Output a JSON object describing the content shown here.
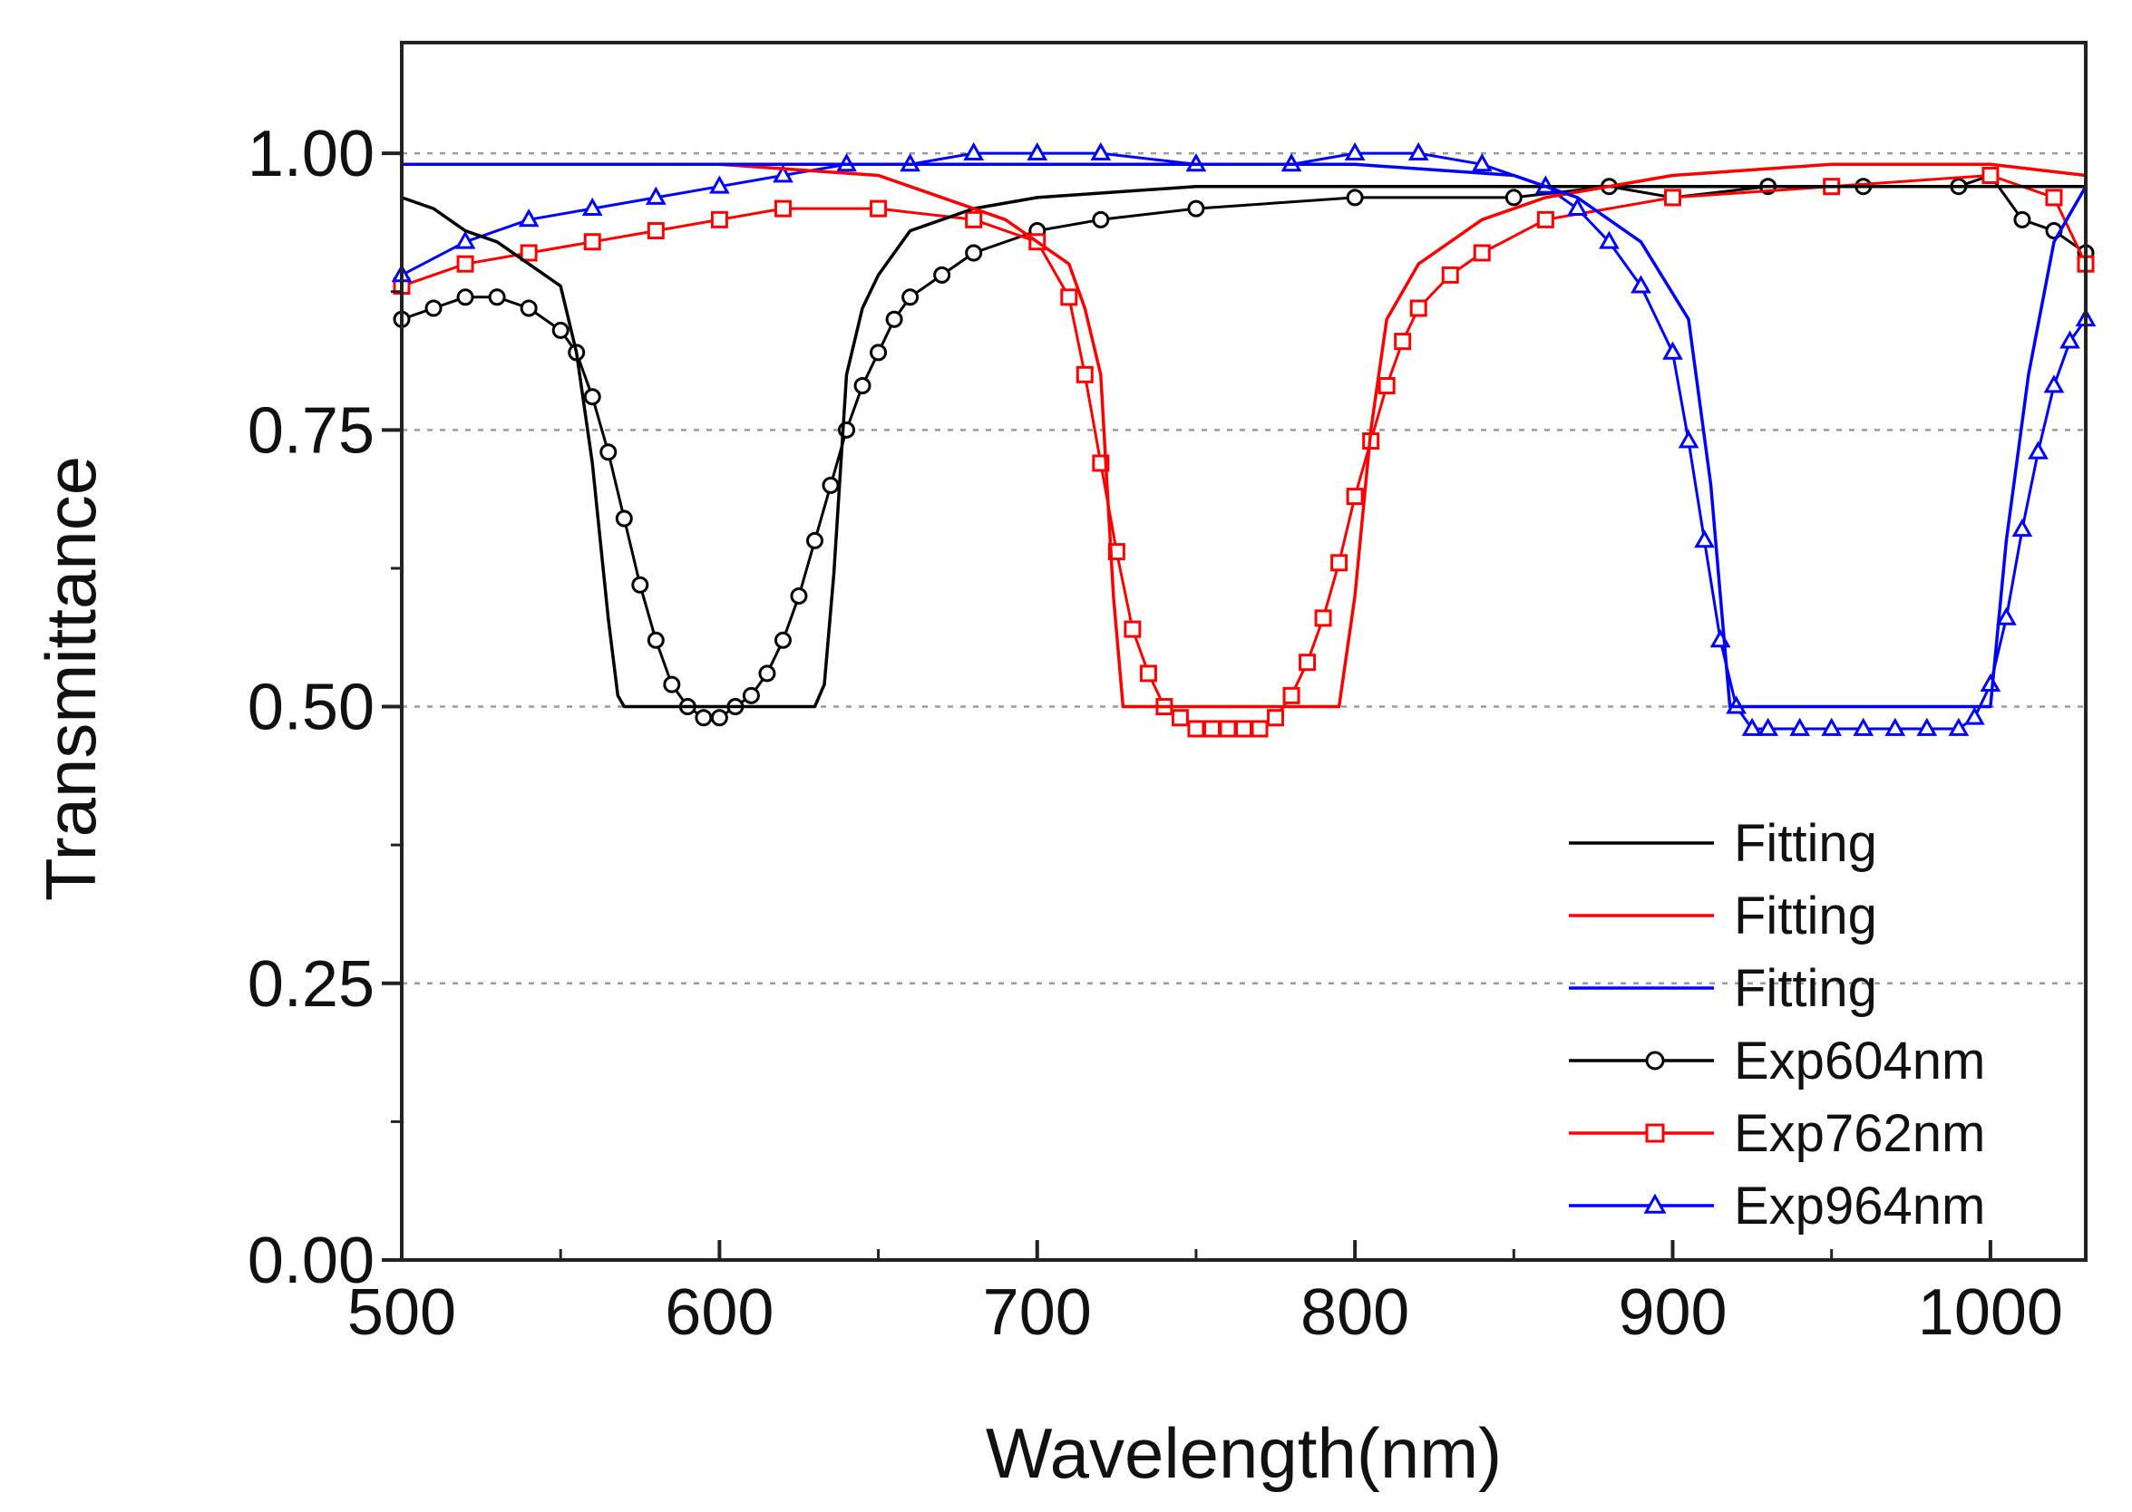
{
  "chart_data": {
    "type": "line",
    "title": "",
    "xlabel": "Wavelength(nm)",
    "ylabel": "Transmittance",
    "xlim": [
      500,
      1030
    ],
    "ylim": [
      0,
      1.1
    ],
    "xticks": [
      500,
      600,
      700,
      800,
      900,
      1000
    ],
    "xtick_labels": [
      "500",
      "600",
      "700",
      "800",
      "900",
      "1000"
    ],
    "yticks": [
      0,
      0.25,
      0.5,
      0.75,
      1.0
    ],
    "ytick_labels": [
      "0.00",
      "0.25",
      "0.50",
      "0.75",
      "1.00"
    ],
    "grid": "dotted horizontal at 0.25, 0.50, 0.75, 1.00",
    "legend_position": "lower-right",
    "series": [
      {
        "name": "Fitting",
        "kind": "fit",
        "color": "#000000",
        "marker": "none",
        "x": [
          500,
          510,
          520,
          530,
          540,
          550,
          555,
          560,
          565,
          568,
          570,
          580,
          590,
          600,
          610,
          620,
          630,
          633,
          636,
          640,
          645,
          650,
          660,
          680,
          700,
          750,
          800,
          850,
          900,
          950,
          1000,
          1030
        ],
        "y": [
          0.96,
          0.95,
          0.93,
          0.92,
          0.9,
          0.88,
          0.82,
          0.72,
          0.58,
          0.51,
          0.5,
          0.5,
          0.5,
          0.5,
          0.5,
          0.5,
          0.5,
          0.52,
          0.62,
          0.8,
          0.86,
          0.89,
          0.93,
          0.95,
          0.96,
          0.97,
          0.97,
          0.97,
          0.97,
          0.97,
          0.97,
          0.97
        ]
      },
      {
        "name": "Fitting",
        "kind": "fit",
        "color": "#ff0000",
        "marker": "none",
        "x": [
          500,
          550,
          600,
          650,
          690,
          700,
          710,
          715,
          720,
          724,
          727,
          740,
          760,
          780,
          790,
          795,
          800,
          805,
          810,
          820,
          840,
          860,
          900,
          950,
          1000,
          1030
        ],
        "y": [
          0.99,
          0.99,
          0.99,
          0.98,
          0.94,
          0.92,
          0.9,
          0.86,
          0.8,
          0.6,
          0.5,
          0.5,
          0.5,
          0.5,
          0.5,
          0.5,
          0.6,
          0.75,
          0.85,
          0.9,
          0.94,
          0.96,
          0.98,
          0.99,
          0.99,
          0.98
        ]
      },
      {
        "name": "Fitting",
        "kind": "fit",
        "color": "#0000ff",
        "marker": "none",
        "x": [
          500,
          550,
          600,
          650,
          700,
          750,
          800,
          850,
          870,
          890,
          905,
          912,
          918,
          930,
          960,
          990,
          1000,
          1005,
          1012,
          1020,
          1030
        ],
        "y": [
          0.99,
          0.99,
          0.99,
          0.99,
          0.99,
          0.99,
          0.99,
          0.98,
          0.96,
          0.92,
          0.85,
          0.7,
          0.5,
          0.5,
          0.5,
          0.5,
          0.5,
          0.65,
          0.8,
          0.92,
          0.97
        ]
      },
      {
        "name": "Exp604nm",
        "kind": "exp",
        "color": "#000000",
        "marker": "circle",
        "x": [
          500,
          510,
          520,
          530,
          540,
          550,
          555,
          560,
          565,
          570,
          575,
          580,
          585,
          590,
          595,
          600,
          605,
          610,
          615,
          620,
          625,
          630,
          635,
          640,
          645,
          650,
          655,
          660,
          670,
          680,
          700,
          720,
          750,
          800,
          850,
          880,
          900,
          930,
          960,
          990,
          1000,
          1010,
          1020,
          1030
        ],
        "y": [
          0.85,
          0.86,
          0.87,
          0.87,
          0.86,
          0.84,
          0.82,
          0.78,
          0.73,
          0.67,
          0.61,
          0.56,
          0.52,
          0.5,
          0.49,
          0.49,
          0.5,
          0.51,
          0.53,
          0.56,
          0.6,
          0.65,
          0.7,
          0.75,
          0.79,
          0.82,
          0.85,
          0.87,
          0.89,
          0.91,
          0.93,
          0.94,
          0.95,
          0.96,
          0.96,
          0.97,
          0.96,
          0.97,
          0.97,
          0.97,
          0.98,
          0.94,
          0.93,
          0.91
        ]
      },
      {
        "name": "Exp762nm",
        "kind": "exp",
        "color": "#ff0000",
        "marker": "square",
        "x": [
          500,
          520,
          540,
          560,
          580,
          600,
          620,
          650,
          680,
          700,
          710,
          715,
          720,
          725,
          730,
          735,
          740,
          745,
          750,
          755,
          760,
          765,
          770,
          775,
          780,
          785,
          790,
          795,
          800,
          805,
          810,
          815,
          820,
          830,
          840,
          860,
          900,
          950,
          1000,
          1020,
          1030
        ],
        "y": [
          0.88,
          0.9,
          0.91,
          0.92,
          0.93,
          0.94,
          0.95,
          0.95,
          0.94,
          0.92,
          0.87,
          0.8,
          0.72,
          0.64,
          0.57,
          0.53,
          0.5,
          0.49,
          0.48,
          0.48,
          0.48,
          0.48,
          0.48,
          0.49,
          0.51,
          0.54,
          0.58,
          0.63,
          0.69,
          0.74,
          0.79,
          0.83,
          0.86,
          0.89,
          0.91,
          0.94,
          0.96,
          0.97,
          0.98,
          0.96,
          0.9
        ]
      },
      {
        "name": "Exp964nm",
        "kind": "exp",
        "color": "#0000ff",
        "marker": "triangle",
        "x": [
          500,
          520,
          540,
          560,
          580,
          600,
          620,
          640,
          660,
          680,
          700,
          720,
          750,
          780,
          800,
          820,
          840,
          860,
          870,
          880,
          890,
          900,
          905,
          910,
          915,
          920,
          925,
          930,
          940,
          950,
          960,
          970,
          980,
          990,
          995,
          1000,
          1005,
          1010,
          1015,
          1020,
          1025,
          1030
        ],
        "y": [
          0.89,
          0.92,
          0.94,
          0.95,
          0.96,
          0.97,
          0.98,
          0.99,
          0.99,
          1.0,
          1.0,
          1.0,
          0.99,
          0.99,
          1.0,
          1.0,
          0.99,
          0.97,
          0.95,
          0.92,
          0.88,
          0.82,
          0.74,
          0.65,
          0.56,
          0.5,
          0.48,
          0.48,
          0.48,
          0.48,
          0.48,
          0.48,
          0.48,
          0.48,
          0.49,
          0.52,
          0.58,
          0.66,
          0.73,
          0.79,
          0.83,
          0.85
        ]
      }
    ]
  }
}
